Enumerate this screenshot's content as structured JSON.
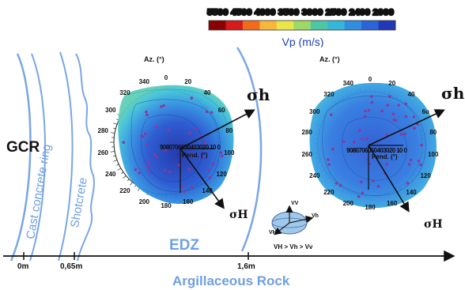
{
  "colorbar": {
    "tick_values": "5500 4500 4000 3500 3000 2500 2400 2000",
    "title": "Vp (m/s)",
    "colors": [
      "#8b0000",
      "#d71a1a",
      "#f26b1c",
      "#f6b73c",
      "#e8e64b",
      "#9ed967",
      "#4cc6a3",
      "#35b7d8",
      "#2f8ee0",
      "#2b63d8",
      "#2238b8"
    ]
  },
  "labels": {
    "gcr": "GCR",
    "cast_concrete_ring": "Cast concrete ring",
    "shotcrete": "Shotcrete",
    "edz": "EDZ",
    "argillaceous_rock": "Argillaceous Rock",
    "dist_0": "0m",
    "dist_065": "0,65m",
    "dist_16": "1,6m"
  },
  "stereonet_left": {
    "az_label": "Az. (°)",
    "pend_label": "Pend. (°)",
    "azimuth_ticks": [
      "0",
      "20",
      "40",
      "60",
      "80",
      "100",
      "120",
      "140",
      "160",
      "180",
      "200",
      "220",
      "240",
      "260",
      "280",
      "300",
      "320",
      "340"
    ],
    "plunge_ticks": "9080706050403020 10  0",
    "sigma_h_minor": "σh",
    "sigma_h_major": "σH"
  },
  "stereonet_right": {
    "az_label": "Az. (°)",
    "pend_label": "Pend. (°)",
    "azimuth_ticks": [
      "0",
      "20",
      "40",
      "6υ",
      "80",
      "100",
      "120",
      "140",
      "160",
      "180",
      "200",
      "220",
      "240",
      "260",
      "280",
      "300",
      "320",
      "340"
    ],
    "plunge_ticks": "9080706050403020 10  0",
    "sigma_h_minor": "σh",
    "sigma_h_major": "σH"
  },
  "ellipsoid": {
    "v_v": "VV",
    "v_h_minor": "Vh",
    "v_h_major": "VH",
    "inequality": "VH > Vh > Vv"
  },
  "colors": {
    "light_blue": "#6f9fe0",
    "dark_blue": "#1a3fb0",
    "deep_blue": "#1e35a8",
    "purple_point": "#8a3a9a"
  }
}
